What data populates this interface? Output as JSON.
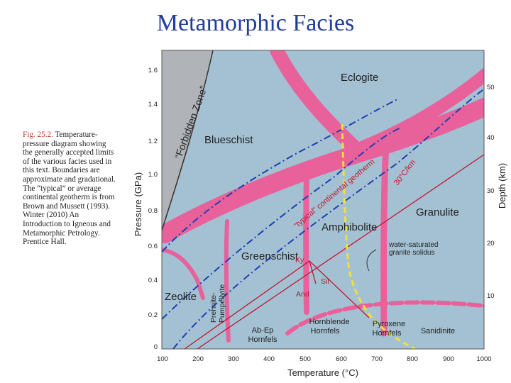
{
  "slide_title": "Metamorphic Facies",
  "caption": {
    "figure_label": "Fig. 25.2.",
    "text": " Temperature-pressure diagram showing the generally accepted limits of the various facies used in this text. Boundaries are approximate and gradational. The “typical” or average continental geotherm is from Brown and Mussett (1993). Winter (2010) An Introduction to Igneous and Metamorphic Petrology. Prentice Hall."
  },
  "diagram": {
    "x_axis_label": "Temperature (°C)",
    "y_axis_left_label": "Pressure (GPa)",
    "y_axis_right_label": "Depth (km)",
    "x_ticks": [
      "100",
      "200",
      "300",
      "400",
      "500",
      "600",
      "700",
      "800",
      "900",
      "1000"
    ],
    "pressure_ticks": [
      "0",
      "0.2",
      "0.4",
      "0.6",
      "0.8",
      "1.0",
      "1.2",
      "1.4",
      "1.6"
    ],
    "depth_ticks": [
      "10",
      "20",
      "30",
      "40",
      "50"
    ],
    "facies": {
      "eclogite": "Eclogite",
      "blueschist": "Blueschist",
      "granulite": "Granulite",
      "amphibolite": "Amphibolite",
      "greenschist": "Greenschist",
      "zeolite": "Zeolite",
      "prehnite_1": "Prehnite-",
      "prehnite_2": "Pumpellyite",
      "ab_ep_1": "Ab-Ep",
      "ab_ep_2": "Hornfels",
      "hornblende_1": "Hornblende",
      "hornblende_2": "Hornfels",
      "pyroxene_1": "Pyroxene",
      "pyroxene_2": "Hornfels",
      "sanidinite": "Sanidinite"
    },
    "forbidden_zone": "“Forbidden Zone”",
    "typical_geotherm": "“typical” continental geotherm",
    "geotherm_30": "30°C/km",
    "solidus_1": "water-saturated",
    "solidus_2": "granite solidus",
    "minerals": {
      "ky": "Ky",
      "sil": "Sil",
      "and": "And"
    },
    "colors": {
      "background": "#a4c1d3",
      "facies_band": "#e8619a",
      "geotherm_line": "#1f3fb4",
      "solidus_line": "#f0e233",
      "title": "#1f3d99"
    }
  }
}
